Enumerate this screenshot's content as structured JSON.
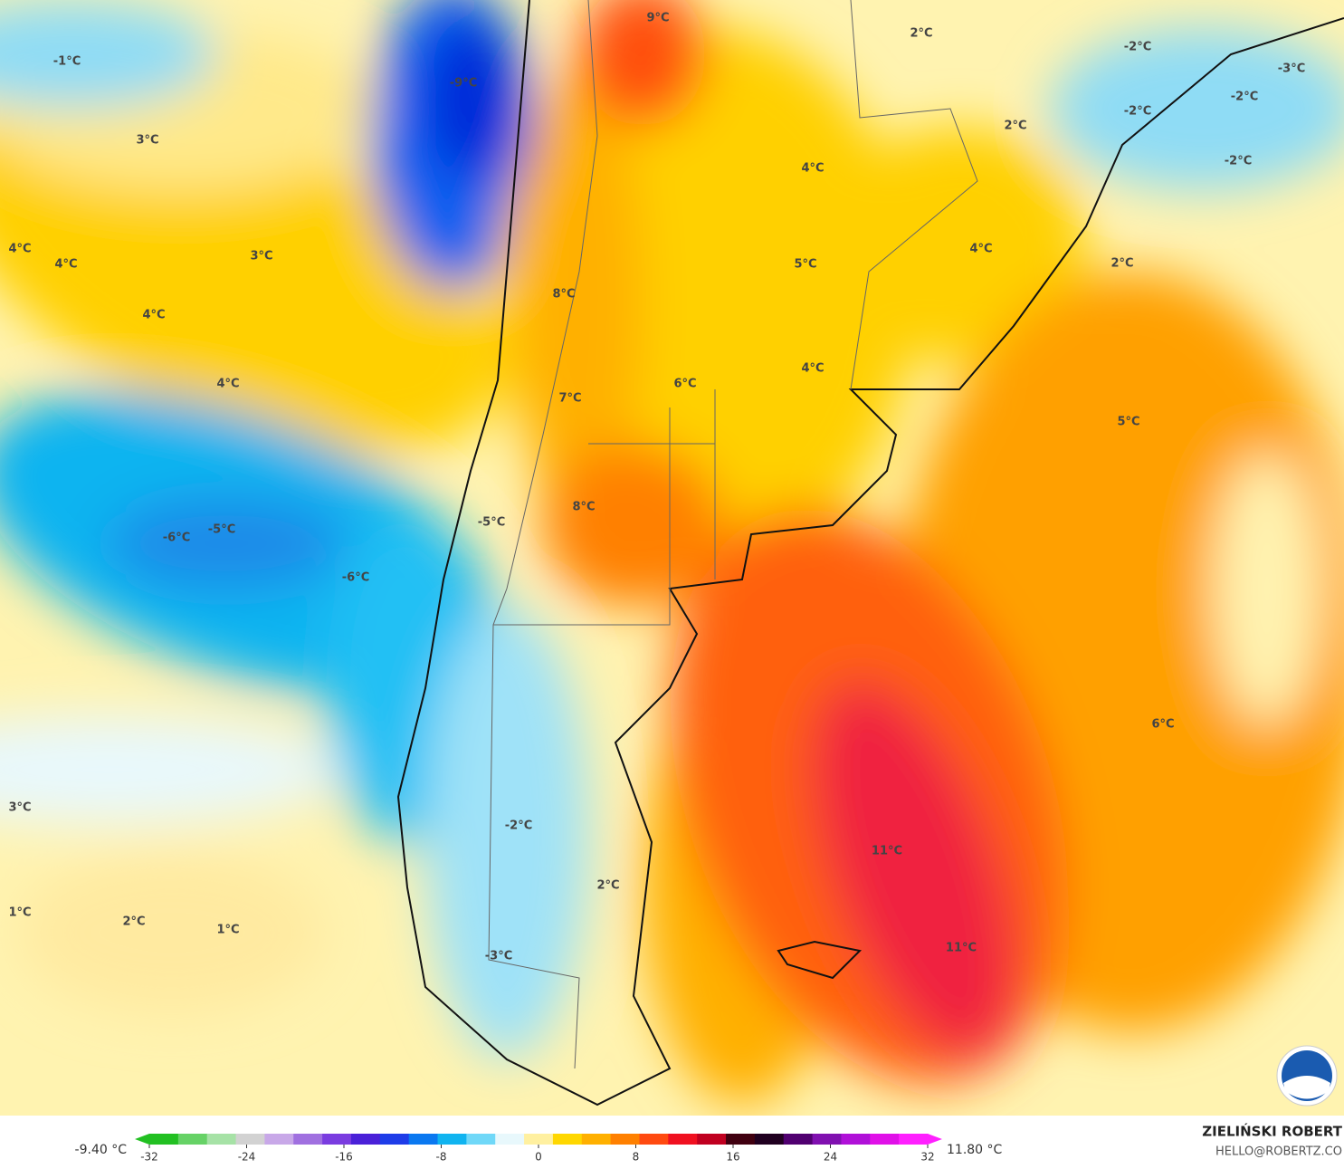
{
  "map": {
    "labels": [
      "9°C",
      "2°C",
      "-2°C",
      "-3°C",
      "-1°C",
      "-9°C",
      "-2°C",
      "-2°C",
      "2°C",
      "3°C",
      "-2°C",
      "4°C",
      "4°C",
      "4°C",
      "3°C",
      "4°C",
      "2°C",
      "5°C",
      "8°C",
      "4°C",
      "4°C",
      "4°C",
      "6°C",
      "7°C",
      "5°C",
      "8°C",
      "-5°C",
      "-5°C",
      "-6°C",
      "-6°C",
      "6°C",
      "3°C",
      "-2°C",
      "11°C",
      "2°C",
      "1°C",
      "2°C",
      "1°C",
      "11°C",
      "-3°C"
    ]
  },
  "colorbar": {
    "min_label": "-9.40 °C",
    "max_label": "11.80 °C",
    "range": [
      -32,
      32
    ],
    "ticks": [
      -32,
      -24,
      -16,
      -8,
      0,
      8,
      16,
      24,
      32
    ],
    "colors": [
      "#22c022",
      "#66d266",
      "#a6e2a6",
      "#d2d2d2",
      "#c8a8e8",
      "#a070e0",
      "#7a3ce0",
      "#4a20d8",
      "#1e3ce8",
      "#0a78f0",
      "#10b4f0",
      "#70d8f8",
      "#e8f8fc",
      "#fff0a0",
      "#ffd700",
      "#ffb000",
      "#ff8000",
      "#ff4a10",
      "#f01020",
      "#c00020",
      "#400010",
      "#200020",
      "#500070",
      "#8010b0",
      "#b010d8",
      "#e010e8",
      "#ff20ff"
    ]
  },
  "credits": {
    "author": "ZIELIŃSKI ROBERT",
    "contact": "HELLO@ROBERTZ.CO"
  }
}
